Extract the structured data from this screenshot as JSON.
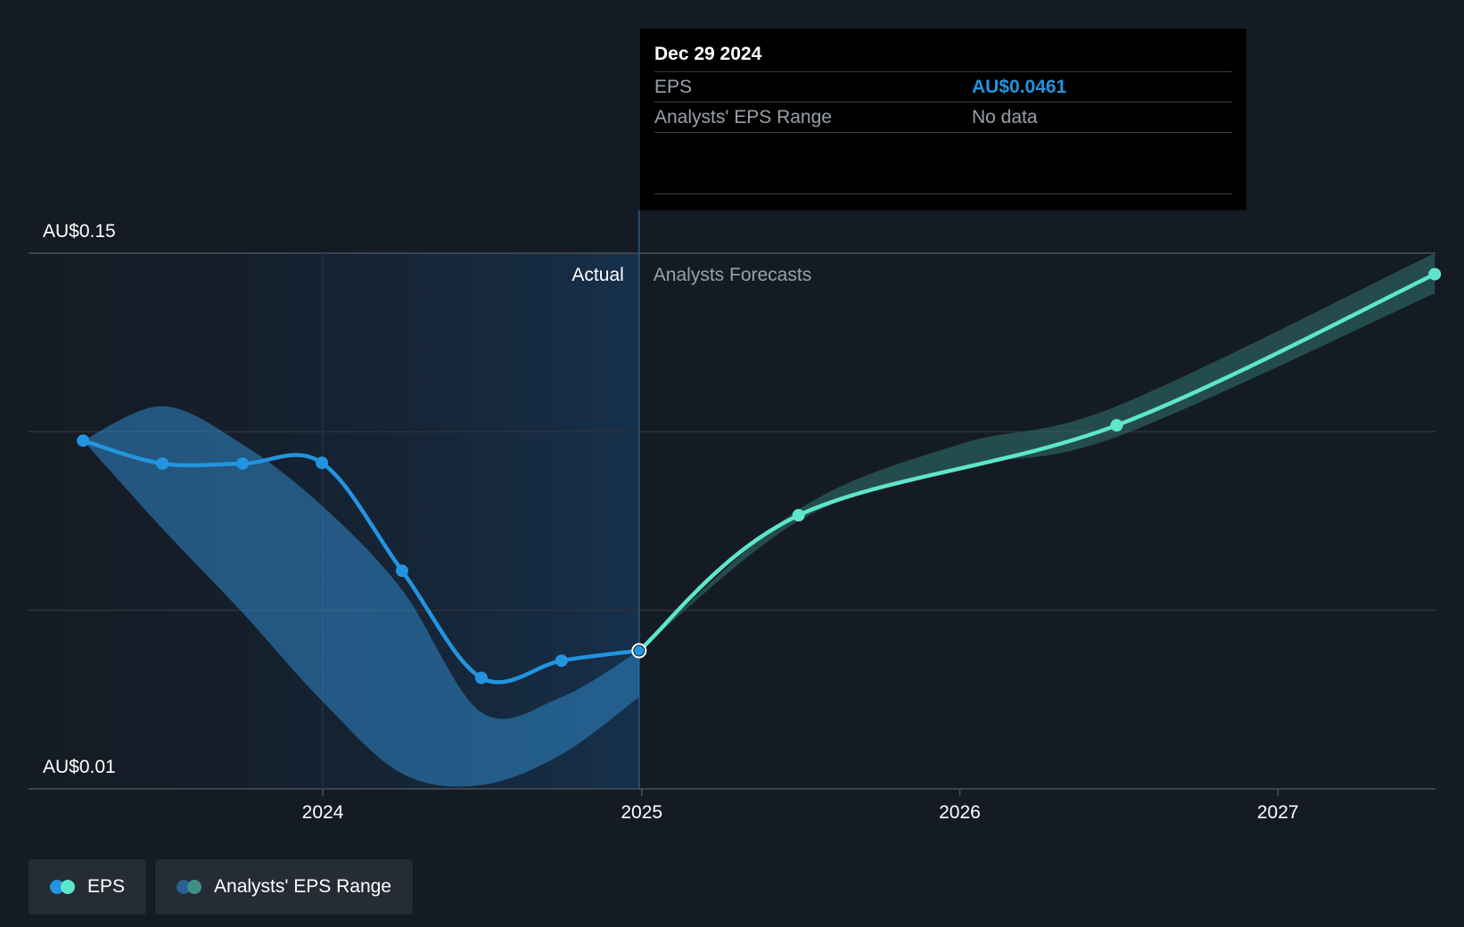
{
  "chart_data": {
    "type": "line",
    "y_axis_labels": [
      "AU$0.15",
      "AU$0.01"
    ],
    "ylim": [
      0.01,
      0.15
    ],
    "x_ticks": [
      "2024",
      "2025",
      "2026",
      "2027"
    ],
    "divider_date": "2024-12-29",
    "region_labels": {
      "actual": "Actual",
      "forecast": "Analysts Forecasts"
    },
    "series": [
      {
        "name": "EPS",
        "type": "actual",
        "color": "#2394df",
        "points": [
          {
            "x": "2023-04-01",
            "y": 0.101
          },
          {
            "x": "2023-07-01",
            "y": 0.095
          },
          {
            "x": "2023-10-01",
            "y": 0.095
          },
          {
            "x": "2023-12-31",
            "y": 0.0952
          },
          {
            "x": "2024-04-01",
            "y": 0.067
          },
          {
            "x": "2024-07-01",
            "y": 0.039
          },
          {
            "x": "2024-10-01",
            "y": 0.0435
          },
          {
            "x": "2024-12-29",
            "y": 0.0461
          }
        ]
      },
      {
        "name": "EPS",
        "type": "forecast",
        "color": "#5ee6cc",
        "points": [
          {
            "x": "2024-12-29",
            "y": 0.0461
          },
          {
            "x": "2025-06-30",
            "y": 0.0815
          },
          {
            "x": "2026-06-30",
            "y": 0.105
          },
          {
            "x": "2027-06-30",
            "y": 0.1445
          }
        ]
      }
    ],
    "ranges": [
      {
        "name": "Analysts' EPS Range",
        "type": "actual",
        "color": "#2f86c6",
        "upper": [
          {
            "x": "2023-04-01",
            "y": 0.101
          },
          {
            "x": "2023-07-01",
            "y": 0.11
          },
          {
            "x": "2023-10-01",
            "y": 0.1
          },
          {
            "x": "2023-12-31",
            "y": 0.084
          },
          {
            "x": "2024-04-01",
            "y": 0.062
          },
          {
            "x": "2024-07-01",
            "y": 0.03
          },
          {
            "x": "2024-10-01",
            "y": 0.034
          },
          {
            "x": "2024-12-29",
            "y": 0.0461
          }
        ],
        "lower": [
          {
            "x": "2023-04-01",
            "y": 0.101
          },
          {
            "x": "2023-07-01",
            "y": 0.078
          },
          {
            "x": "2023-10-01",
            "y": 0.056
          },
          {
            "x": "2023-12-31",
            "y": 0.033
          },
          {
            "x": "2024-04-01",
            "y": 0.014
          },
          {
            "x": "2024-07-01",
            "y": 0.011
          },
          {
            "x": "2024-10-01",
            "y": 0.019
          },
          {
            "x": "2024-12-29",
            "y": 0.034
          }
        ]
      },
      {
        "name": "Analysts' EPS Range",
        "type": "forecast",
        "color": "#2e6e69",
        "upper": [
          {
            "x": "2024-12-29",
            "y": 0.0461
          },
          {
            "x": "2025-06-30",
            "y": 0.083
          },
          {
            "x": "2025-12-31",
            "y": 0.1
          },
          {
            "x": "2026-06-30",
            "y": 0.11
          },
          {
            "x": "2027-06-30",
            "y": 0.15
          }
        ],
        "lower": [
          {
            "x": "2024-12-29",
            "y": 0.0461
          },
          {
            "x": "2025-06-30",
            "y": 0.08
          },
          {
            "x": "2025-12-31",
            "y": 0.094
          },
          {
            "x": "2026-06-30",
            "y": 0.102
          },
          {
            "x": "2027-06-30",
            "y": 0.1395
          }
        ]
      }
    ],
    "tooltip": {
      "date": "Dec 29 2024",
      "rows": [
        {
          "label": "EPS",
          "value": "AU$0.0461"
        },
        {
          "label": "Analysts' EPS Range",
          "value": "No data"
        }
      ]
    },
    "legend": [
      {
        "label": "EPS",
        "colors": [
          "#2394df",
          "#5ee6cc"
        ]
      },
      {
        "label": "Analysts' EPS Range",
        "colors": [
          "#2a5f8f",
          "#3f8f86"
        ]
      }
    ],
    "legend_position": "bottom-left",
    "grid": true
  }
}
